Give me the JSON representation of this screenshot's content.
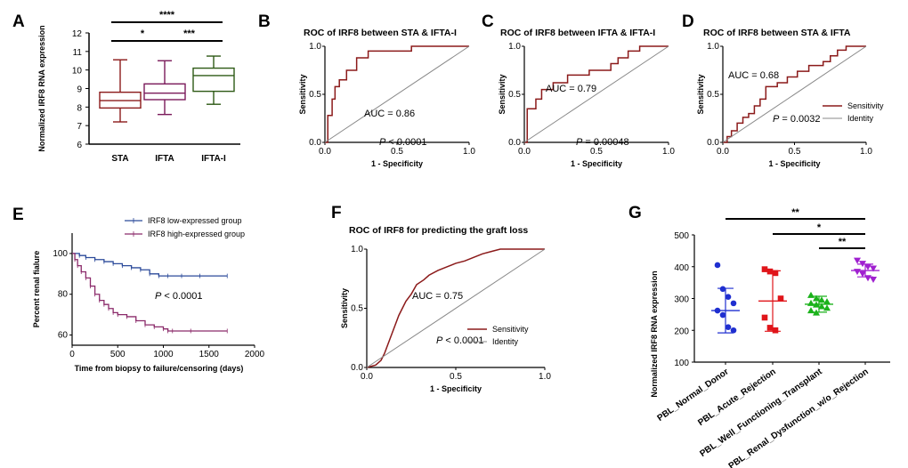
{
  "chart_data": [
    {
      "panel": "A",
      "type": "box",
      "ylabel": "Normalized IRF8 RNA expression",
      "ylim": [
        6,
        12
      ],
      "yticks": [
        "6",
        "7",
        "8",
        "9",
        "10",
        "11",
        "12"
      ],
      "groups": [
        {
          "name": "STA",
          "color": "#8b1a1a",
          "min": 7.2,
          "q1": 7.95,
          "median": 8.35,
          "q3": 8.8,
          "max": 10.55
        },
        {
          "name": "IFTA",
          "color": "#7a1a5a",
          "min": 7.6,
          "q1": 8.4,
          "median": 8.75,
          "q3": 9.25,
          "max": 10.5
        },
        {
          "name": "IFTA-I",
          "color": "#2e5a16",
          "min": 8.15,
          "q1": 8.85,
          "median": 9.7,
          "q3": 10.1,
          "max": 10.75
        }
      ],
      "significance": [
        {
          "pair": [
            "STA",
            "IFTA-I"
          ],
          "label": "****"
        },
        {
          "pair": [
            "STA",
            "IFTA"
          ],
          "label": "*"
        },
        {
          "pair": [
            "IFTA",
            "IFTA-I"
          ],
          "label": "***"
        }
      ]
    },
    {
      "panel": "B",
      "type": "line",
      "title": "ROC of IRF8 between STA &  IFTA-I",
      "xlabel": "1 - Specificity",
      "ylabel": "Sensitivity",
      "xticks": [
        "0.0",
        "0.5",
        "1.0"
      ],
      "yticks": [
        "0.0",
        "0.5",
        "1.0"
      ],
      "auc": "AUC = 0.86",
      "p_prefix": "P",
      "p_value": " < 0.0001",
      "series": [
        {
          "name": "Sensitivity",
          "color": "#8b1a1a",
          "x": [
            0,
            0.02,
            0.02,
            0.05,
            0.05,
            0.07,
            0.07,
            0.1,
            0.1,
            0.15,
            0.15,
            0.22,
            0.22,
            0.3,
            0.3,
            0.6,
            0.6,
            1
          ],
          "y": [
            0,
            0,
            0.28,
            0.28,
            0.45,
            0.45,
            0.58,
            0.58,
            0.65,
            0.65,
            0.75,
            0.75,
            0.88,
            0.88,
            0.95,
            0.95,
            1,
            1
          ]
        },
        {
          "name": "Identity",
          "color": "#888888",
          "x": [
            0,
            1
          ],
          "y": [
            0,
            1
          ]
        }
      ]
    },
    {
      "panel": "C",
      "type": "line",
      "title": "ROC of IRF8 between IFTA & IFTA-I",
      "xlabel": "1 - Specificity",
      "ylabel": "Sensitivity",
      "xticks": [
        "0.0",
        "0.5",
        "1.0"
      ],
      "yticks": [
        "0.0",
        "0.5",
        "1.0"
      ],
      "auc": "AUC = 0.79",
      "p_prefix": "P",
      "p_value": " = 0.00048",
      "series": [
        {
          "name": "Sensitivity",
          "color": "#8b1a1a",
          "x": [
            0,
            0.02,
            0.02,
            0.08,
            0.08,
            0.12,
            0.12,
            0.2,
            0.2,
            0.3,
            0.3,
            0.45,
            0.45,
            0.6,
            0.6,
            0.65,
            0.65,
            0.72,
            0.72,
            0.8,
            0.8,
            1
          ],
          "y": [
            0,
            0,
            0.35,
            0.35,
            0.45,
            0.45,
            0.55,
            0.55,
            0.62,
            0.62,
            0.7,
            0.7,
            0.75,
            0.75,
            0.82,
            0.82,
            0.88,
            0.88,
            0.95,
            0.95,
            1,
            1
          ]
        },
        {
          "name": "Identity",
          "color": "#888888",
          "x": [
            0,
            1
          ],
          "y": [
            0,
            1
          ]
        }
      ]
    },
    {
      "panel": "D",
      "type": "line",
      "title": "ROC of IRF8 between STA &  IFTA",
      "xlabel": "1 - Specificity",
      "ylabel": "Sensitivity",
      "xticks": [
        "0.0",
        "0.5",
        "1.0"
      ],
      "yticks": [
        "0.0",
        "0.5",
        "1.0"
      ],
      "auc": "AUC = 0.68",
      "p_prefix": "P",
      "p_value": " = 0.0032",
      "legend": [
        "Sensitivity",
        "Identity"
      ],
      "series": [
        {
          "name": "Sensitivity",
          "color": "#8b1a1a",
          "x": [
            0,
            0.03,
            0.03,
            0.06,
            0.06,
            0.1,
            0.1,
            0.14,
            0.14,
            0.18,
            0.18,
            0.22,
            0.22,
            0.26,
            0.26,
            0.3,
            0.3,
            0.38,
            0.38,
            0.45,
            0.45,
            0.52,
            0.52,
            0.6,
            0.6,
            0.7,
            0.7,
            0.75,
            0.75,
            0.8,
            0.8,
            0.86,
            0.86,
            1
          ],
          "y": [
            0,
            0,
            0.06,
            0.06,
            0.12,
            0.12,
            0.2,
            0.2,
            0.26,
            0.26,
            0.3,
            0.3,
            0.38,
            0.38,
            0.45,
            0.45,
            0.58,
            0.58,
            0.62,
            0.62,
            0.68,
            0.68,
            0.74,
            0.74,
            0.8,
            0.8,
            0.84,
            0.84,
            0.9,
            0.9,
            0.96,
            0.96,
            1,
            1
          ]
        },
        {
          "name": "Identity",
          "color": "#888888",
          "x": [
            0,
            1
          ],
          "y": [
            0,
            1
          ]
        }
      ]
    },
    {
      "panel": "E",
      "type": "line",
      "xlabel": "Time from biopsy to failure/censoring (days)",
      "ylabel": "Percent renal fialure",
      "xticks": [
        "0",
        "500",
        "1000",
        "1500",
        "2000"
      ],
      "yticks": [
        "60",
        "80",
        "100"
      ],
      "xlim": [
        0,
        2000
      ],
      "ylim": [
        55,
        110
      ],
      "p_prefix": "P",
      "p_value": " < 0.0001",
      "series": [
        {
          "name": "IRF8 low-expressed group",
          "color": "#2b4a9a",
          "x": [
            0,
            80,
            150,
            250,
            350,
            450,
            550,
            650,
            750,
            850,
            950,
            1050,
            1200,
            1400,
            1700
          ],
          "y": [
            100,
            99,
            98,
            97,
            96,
            95,
            94,
            93,
            92,
            90,
            89,
            89,
            89,
            89,
            89
          ]
        },
        {
          "name": "IRF8 high-expressed group",
          "color": "#8b2a6a",
          "x": [
            0,
            30,
            60,
            100,
            150,
            200,
            250,
            300,
            350,
            400,
            450,
            500,
            600,
            700,
            800,
            900,
            1000,
            1050,
            1100,
            1300,
            1700
          ],
          "y": [
            100,
            97,
            94,
            91,
            88,
            84,
            80,
            77,
            75,
            73,
            71,
            70,
            69,
            67,
            65,
            64,
            63,
            62,
            62,
            62,
            62
          ]
        }
      ]
    },
    {
      "panel": "F",
      "type": "line",
      "title": "ROC of IRF8 for predicting the graft loss",
      "xlabel": "1 - Specificity",
      "ylabel": "Sensitivity",
      "xticks": [
        "0.0",
        "0.5",
        "1.0"
      ],
      "yticks": [
        "0.0",
        "0.5",
        "1.0"
      ],
      "auc": "AUC = 0.75",
      "p_prefix": "P",
      "p_value": " < 0.0001",
      "legend": [
        "Sensitivity",
        "Identity"
      ],
      "series": [
        {
          "name": "Sensitivity",
          "color": "#8b1a1a",
          "x": [
            0,
            0.05,
            0.08,
            0.1,
            0.12,
            0.14,
            0.16,
            0.18,
            0.2,
            0.22,
            0.25,
            0.28,
            0.32,
            0.35,
            0.4,
            0.45,
            0.5,
            0.55,
            0.6,
            0.65,
            0.7,
            0.75,
            0.85,
            1
          ],
          "y": [
            0,
            0.02,
            0.06,
            0.12,
            0.2,
            0.28,
            0.36,
            0.44,
            0.5,
            0.56,
            0.62,
            0.7,
            0.74,
            0.78,
            0.82,
            0.85,
            0.88,
            0.9,
            0.93,
            0.96,
            0.98,
            1,
            1,
            1
          ]
        },
        {
          "name": "Identity",
          "color": "#888888",
          "x": [
            0,
            1
          ],
          "y": [
            0,
            1
          ]
        }
      ]
    },
    {
      "panel": "G",
      "type": "scatter",
      "ylabel": "Normalized IRF8 RNA expression",
      "ylim": [
        100,
        500
      ],
      "yticks": [
        "100",
        "200",
        "300",
        "400",
        "500"
      ],
      "groups": [
        {
          "name": "PBL_Normal_Donor",
          "color": "#1f2fd0",
          "marker": "circle",
          "mean": 262,
          "sd": 70,
          "values": [
            405,
            330,
            305,
            285,
            262,
            248,
            210,
            200
          ]
        },
        {
          "name": "PBL_Acute_Rejection",
          "color": "#e0151a",
          "marker": "square",
          "mean": 292,
          "sd": 95,
          "values": [
            392,
            385,
            380,
            300,
            240,
            208,
            200
          ]
        },
        {
          "name": "PBL_Well_Functioning_Transplant",
          "color": "#1bb21b",
          "marker": "triangle",
          "mean": 282,
          "sd": 25,
          "values": [
            310,
            300,
            295,
            290,
            285,
            280,
            275,
            270,
            262,
            255
          ]
        },
        {
          "name": "PBL_Renal_Dysfunction_w/o_Rejection",
          "color": "#a020d0",
          "marker": "triangle-down",
          "mean": 388,
          "sd": 20,
          "values": [
            420,
            410,
            400,
            395,
            385,
            378,
            365,
            360
          ]
        }
      ],
      "significance": [
        {
          "pair": [
            "PBL_Normal_Donor",
            "PBL_Renal_Dysfunction_w/o_Rejection"
          ],
          "label": "**"
        },
        {
          "pair": [
            "PBL_Acute_Rejection",
            "PBL_Renal_Dysfunction_w/o_Rejection"
          ],
          "label": "*"
        },
        {
          "pair": [
            "PBL_Well_Functioning_Transplant",
            "PBL_Renal_Dysfunction_w/o_Rejection"
          ],
          "label": "**"
        }
      ]
    }
  ]
}
